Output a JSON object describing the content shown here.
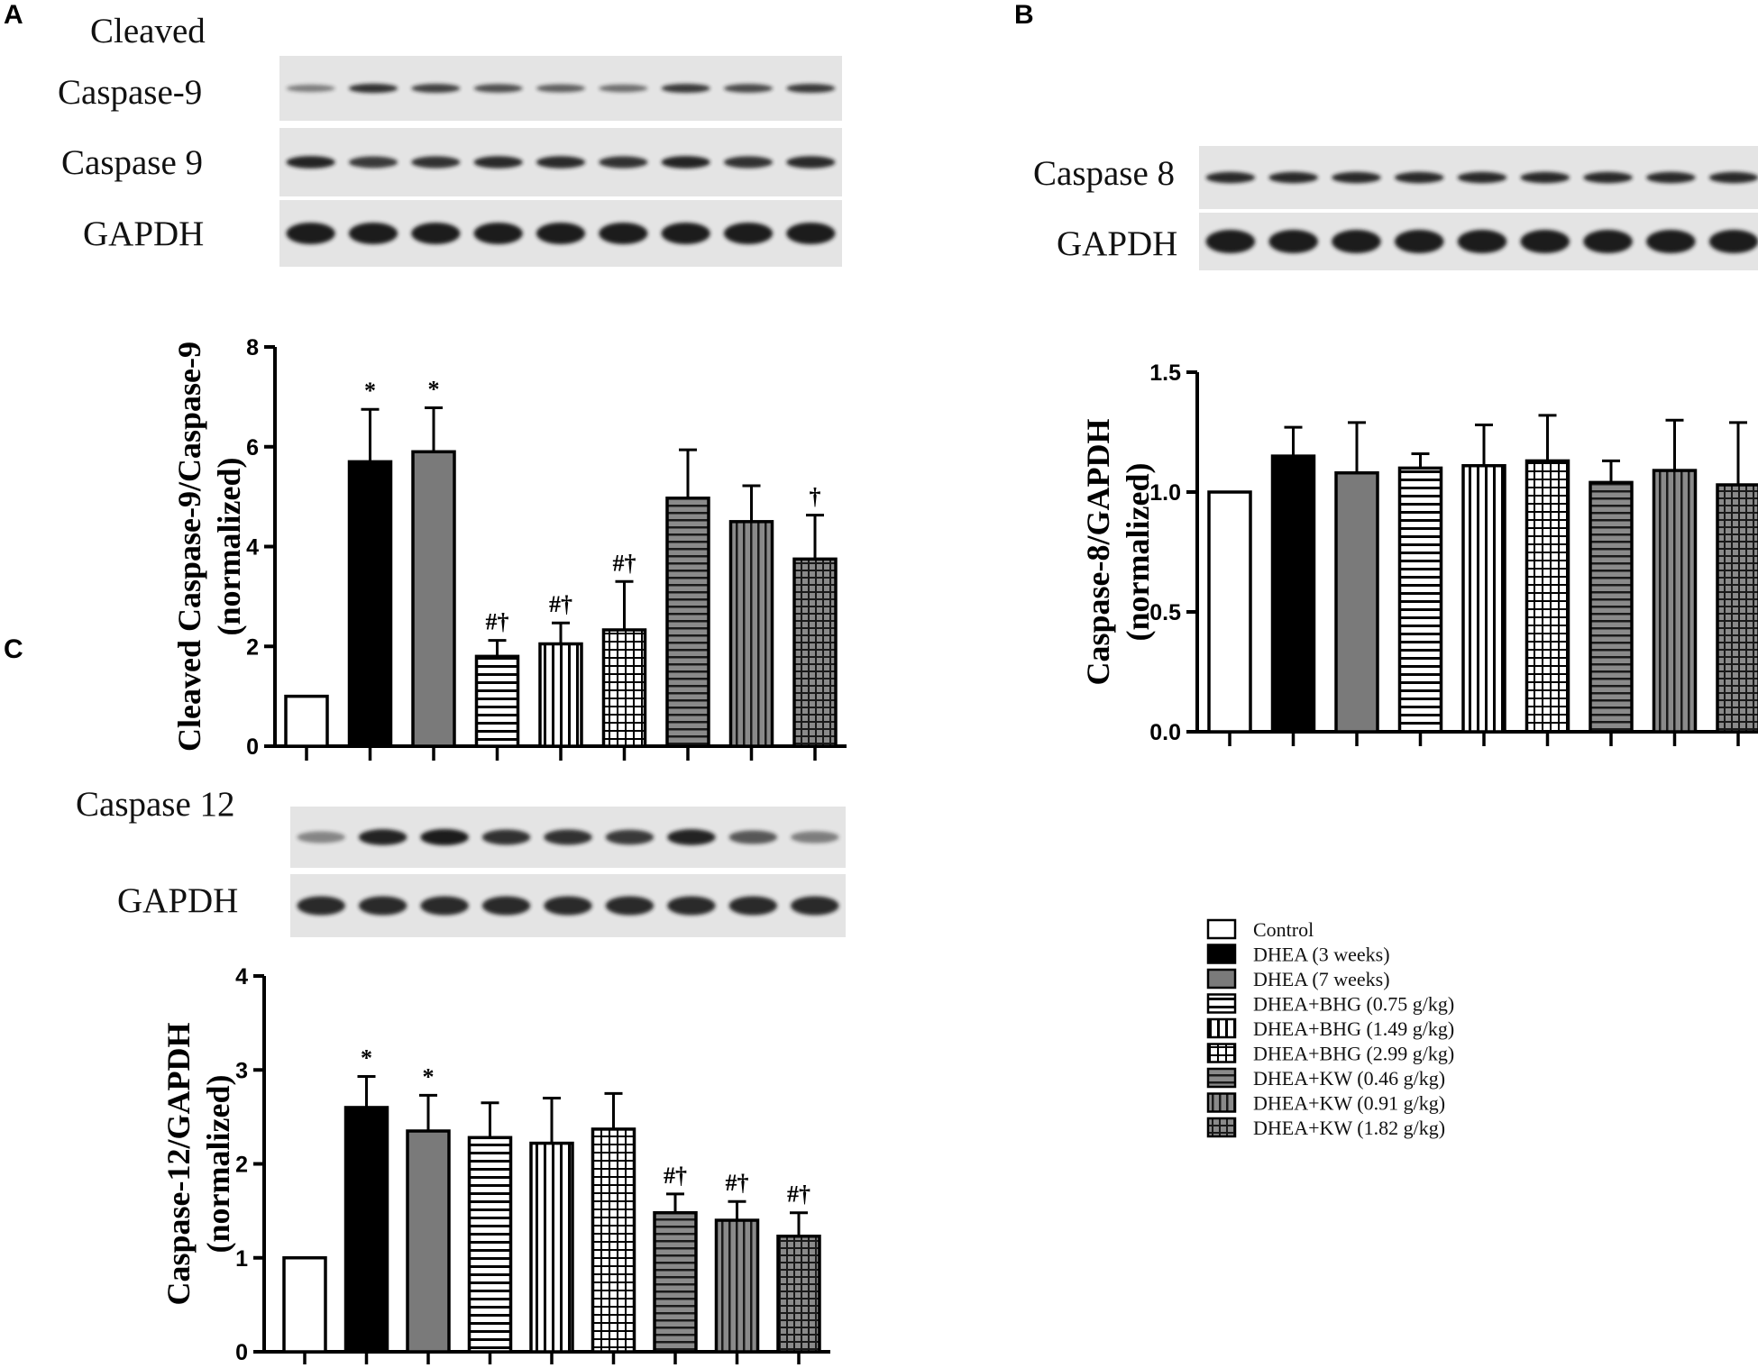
{
  "panels": {
    "A": {
      "letter": "A",
      "blot_labels": [
        "Cleaved",
        "Caspase-9",
        "Caspase 9",
        "GAPDH"
      ]
    },
    "B": {
      "letter": "B",
      "blot_labels": [
        "Caspase 8",
        "GAPDH"
      ]
    },
    "C": {
      "letter": "C",
      "blot_labels": [
        "Caspase 12",
        "GAPDH"
      ]
    }
  },
  "colors": {
    "axis": "#000000",
    "white_fill": "#ffffff",
    "black_fill": "#000000",
    "gray_fill": "#7a7a7a",
    "blot_band": "#1c1c1c",
    "blot_background": "#e4e4e4"
  },
  "legend": {
    "entries": [
      {
        "label": "Control",
        "pattern": "white"
      },
      {
        "label": "DHEA (3 weeks)",
        "pattern": "black"
      },
      {
        "label": "DHEA (7 weeks)",
        "pattern": "gray"
      },
      {
        "label": "DHEA+BHG (0.75 g/kg)",
        "pattern": "hlines"
      },
      {
        "label": "DHEA+BHG (1.49 g/kg)",
        "pattern": "vlines"
      },
      {
        "label": "DHEA+BHG (2.99 g/kg)",
        "pattern": "grid"
      },
      {
        "label": "DHEA+KW (0.46 g/kg)",
        "pattern": "gray-hlines"
      },
      {
        "label": "DHEA+KW (0.91 g/kg)",
        "pattern": "gray-vlines"
      },
      {
        "label": "DHEA+KW (1.82 g/kg)",
        "pattern": "gray-grid"
      }
    ]
  },
  "chart_data": [
    {
      "panel": "A",
      "type": "bar",
      "ylabel_lines": [
        "Cleaved Caspase-9/Caspase-9",
        "(normalized)"
      ],
      "ylim": [
        0,
        8
      ],
      "yticks": [
        "0",
        "2",
        "4",
        "6",
        "8"
      ],
      "categories": [
        "Control",
        "DHEA (3 weeks)",
        "DHEA (7 weeks)",
        "DHEA+BHG (0.75 g/kg)",
        "DHEA+BHG (1.49 g/kg)",
        "DHEA+BHG (2.99 g/kg)",
        "DHEA+KW (0.46 g/kg)",
        "DHEA+KW (0.91 g/kg)",
        "DHEA+KW (1.82 g/kg)"
      ],
      "values": [
        1.0,
        5.7,
        5.9,
        1.8,
        2.05,
        2.33,
        4.97,
        4.5,
        3.75
      ],
      "errors": [
        0,
        1.05,
        0.88,
        0.32,
        0.42,
        0.97,
        0.97,
        0.72,
        0.88
      ],
      "significance": [
        "",
        "*",
        "*",
        "#†",
        "#†",
        "#†",
        "",
        "",
        "†"
      ]
    },
    {
      "panel": "B",
      "type": "bar",
      "ylabel_lines": [
        "Caspase-8/GAPDH",
        "(normalized)"
      ],
      "ylim": [
        0,
        1.5
      ],
      "yticks": [
        "0.0",
        "0.5",
        "1.0",
        "1.5"
      ],
      "categories": [
        "Control",
        "DHEA (3 weeks)",
        "DHEA (7 weeks)",
        "DHEA+BHG (0.75 g/kg)",
        "DHEA+BHG (1.49 g/kg)",
        "DHEA+BHG (2.99 g/kg)",
        "DHEA+KW (0.46 g/kg)",
        "DHEA+KW (0.91 g/kg)",
        "DHEA+KW (1.82 g/kg)"
      ],
      "values": [
        1.0,
        1.15,
        1.08,
        1.1,
        1.11,
        1.13,
        1.04,
        1.09,
        1.03
      ],
      "errors": [
        0,
        0.12,
        0.21,
        0.06,
        0.17,
        0.19,
        0.09,
        0.21,
        0.26
      ],
      "significance": [
        "",
        "",
        "",
        "",
        "",
        "",
        "",
        "",
        ""
      ]
    },
    {
      "panel": "C",
      "type": "bar",
      "ylabel_lines": [
        "Caspase-12/GAPDH",
        "(normalized)"
      ],
      "ylim": [
        0,
        4
      ],
      "yticks": [
        "0",
        "1",
        "2",
        "3",
        "4"
      ],
      "categories": [
        "Control",
        "DHEA (3 weeks)",
        "DHEA (7 weeks)",
        "DHEA+BHG (0.75 g/kg)",
        "DHEA+BHG (1.49 g/kg)",
        "DHEA+BHG (2.99 g/kg)",
        "DHEA+KW (0.46 g/kg)",
        "DHEA+KW (0.91 g/kg)",
        "DHEA+KW (1.82 g/kg)"
      ],
      "values": [
        1.0,
        2.6,
        2.35,
        2.28,
        2.22,
        2.37,
        1.48,
        1.4,
        1.23
      ],
      "errors": [
        0,
        0.33,
        0.38,
        0.37,
        0.48,
        0.38,
        0.2,
        0.2,
        0.25
      ],
      "significance": [
        "",
        "*",
        "*",
        "",
        "",
        "",
        "#†",
        "#†",
        "#†"
      ]
    }
  ]
}
